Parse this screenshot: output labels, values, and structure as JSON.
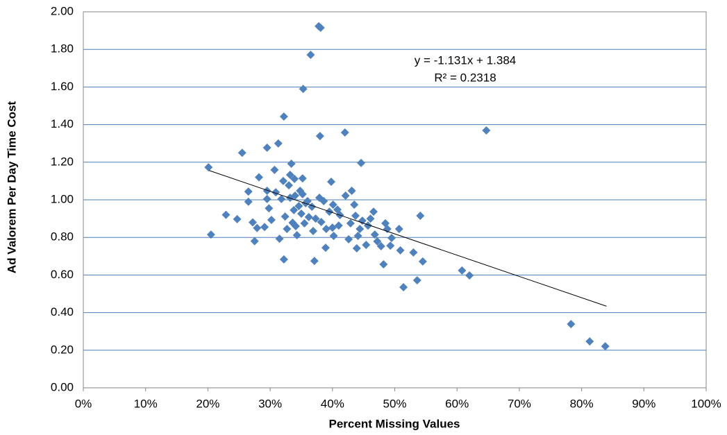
{
  "chart_data": {
    "type": "scatter",
    "x_label": "Percent Missing Values",
    "y_label": "Ad Valorem Per Day Time Cost",
    "annotations": [
      "y = -1.131x + 1.384",
      "R² = 0.2318"
    ],
    "color": "#4f81bd",
    "grid": true,
    "xlim": [
      0,
      100
    ],
    "ylim": [
      0,
      2
    ],
    "xticks": [
      {
        "value": 0,
        "label": "0%"
      },
      {
        "value": 10,
        "label": "10%"
      },
      {
        "value": 20,
        "label": "20%"
      },
      {
        "value": 30,
        "label": "30%"
      },
      {
        "value": 40,
        "label": "40%"
      },
      {
        "value": 50,
        "label": "50%"
      },
      {
        "value": 60,
        "label": "60%"
      },
      {
        "value": 70,
        "label": "70%"
      },
      {
        "value": 80,
        "label": "80%"
      },
      {
        "value": 90,
        "label": "90%"
      },
      {
        "value": 100,
        "label": "100%"
      }
    ],
    "yticks": [
      {
        "value": 0,
        "label": "0.00"
      },
      {
        "value": 0.2,
        "label": "0.20"
      },
      {
        "value": 0.4,
        "label": "0.40"
      },
      {
        "value": 0.6,
        "label": "0.60"
      },
      {
        "value": 0.8,
        "label": "0.80"
      },
      {
        "value": 1.0,
        "label": "1.00"
      },
      {
        "value": 1.2,
        "label": "1.20"
      },
      {
        "value": 1.4,
        "label": "1.40"
      },
      {
        "value": 1.6,
        "label": "1.60"
      },
      {
        "value": 1.8,
        "label": "1.80"
      },
      {
        "value": 2.0,
        "label": "2.00"
      }
    ],
    "x": [
      20.1,
      20.5,
      22.9,
      24.7,
      25.5,
      26.5,
      26.5,
      27.2,
      27.5,
      27.9,
      28.2,
      29.1,
      29.5,
      29.5,
      29.5,
      29.8,
      30.2,
      30.7,
      30.9,
      31.3,
      31.5,
      31.8,
      32.1,
      32.2,
      32.2,
      32.4,
      32.7,
      33.0,
      33.2,
      33.2,
      33.4,
      33.6,
      33.8,
      33.9,
      34.0,
      34.1,
      34.3,
      34.6,
      34.8,
      35.0,
      35.2,
      35.2,
      35.5,
      35.3,
      35.7,
      36.0,
      36.2,
      36.5,
      36.7,
      36.9,
      37.1,
      37.3,
      37.8,
      38.1,
      37.9,
      38.0,
      38.2,
      38.6,
      38.9,
      39.0,
      39.5,
      39.8,
      40.0,
      40.1,
      40.2,
      40.8,
      41.0,
      41.2,
      42.0,
      42.1,
      42.6,
      42.9,
      43.1,
      43.5,
      43.7,
      43.9,
      44.1,
      44.4,
      44.6,
      44.8,
      45.4,
      45.7,
      46.1,
      46.6,
      46.8,
      47.2,
      47.8,
      48.2,
      48.5,
      48.8,
      49.3,
      49.5,
      50.7,
      50.9,
      51.4,
      53.0,
      53.6,
      54.1,
      54.5,
      60.8,
      62.0,
      64.7,
      78.3,
      81.3,
      83.8
    ],
    "values": [
      1.173,
      0.815,
      0.92,
      0.897,
      1.25,
      1.044,
      0.99,
      0.88,
      0.78,
      0.85,
      1.12,
      0.855,
      1.277,
      1.048,
      1.004,
      0.955,
      0.893,
      1.159,
      1.04,
      1.3,
      0.793,
      1.004,
      1.1,
      1.443,
      0.683,
      0.911,
      0.845,
      1.077,
      1.133,
      1.011,
      1.192,
      0.878,
      0.945,
      1.111,
      1.022,
      0.86,
      0.812,
      0.967,
      1.048,
      0.926,
      1.114,
      1.03,
      0.875,
      1.59,
      0.982,
      0.993,
      0.908,
      1.771,
      0.963,
      0.834,
      0.675,
      0.9,
      1.923,
      1.915,
      1.011,
      1.339,
      0.882,
      0.993,
      0.745,
      0.845,
      0.937,
      1.096,
      0.852,
      0.974,
      0.808,
      0.948,
      0.863,
      0.919,
      1.358,
      1.022,
      0.79,
      0.875,
      1.048,
      0.974,
      0.915,
      0.742,
      0.808,
      0.845,
      1.196,
      0.889,
      0.76,
      0.863,
      0.9,
      0.937,
      0.815,
      0.779,
      0.753,
      0.657,
      0.875,
      0.845,
      0.756,
      0.797,
      0.845,
      0.731,
      0.535,
      0.72,
      0.572,
      0.915,
      0.672,
      0.624,
      0.598,
      1.369,
      0.339,
      0.247,
      0.221
    ],
    "trendline": {
      "color": "#000000",
      "x": [
        20.2,
        84
      ],
      "values": [
        1.156,
        0.434
      ]
    }
  }
}
